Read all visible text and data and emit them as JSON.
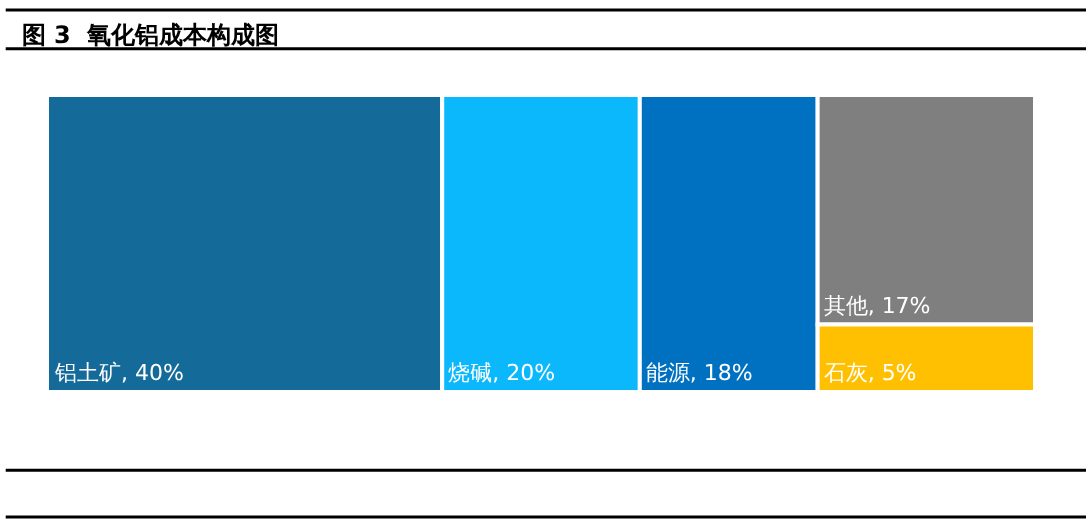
{
  "chart_data": {
    "type": "other",
    "title": "图 3  氧化铝成本构成图",
    "categories": [
      "铝土矿",
      "烧碱",
      "能源",
      "其他",
      "石灰"
    ],
    "values": [
      40,
      20,
      18,
      17,
      5
    ],
    "colors": [
      "#146a98",
      "#0bb8fc",
      "#0071c1",
      "#7f7f7f",
      "#fec000"
    ],
    "value_labels": [
      ", 40%",
      ", 20%",
      ", 18%",
      ", 17%",
      ", 5%"
    ]
  }
}
